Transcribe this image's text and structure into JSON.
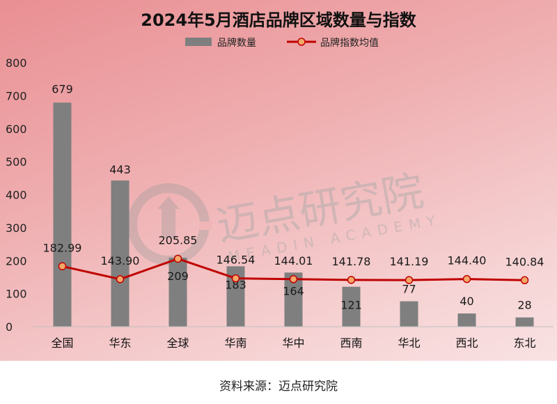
{
  "source_label": "资料来源：迈点研究院",
  "watermark": {
    "cn": "迈点研究院",
    "en": "MEADIN ACADEMY",
    "color": "#b0b0b0"
  },
  "colors": {
    "bar": "#7f7f7f",
    "line": "#c00000",
    "marker_fill": "#f4a86a"
  },
  "chart_data": {
    "type": "bar",
    "title": "2024年5月酒店品牌区域数量与指数",
    "categories": [
      "全国",
      "华东",
      "全球",
      "华南",
      "华中",
      "西南",
      "华北",
      "西北",
      "东北"
    ],
    "series": [
      {
        "name": "品牌数量",
        "type": "bar",
        "values": [
          679,
          443,
          209,
          183,
          164,
          121,
          77,
          40,
          28
        ]
      },
      {
        "name": "品牌指数均值",
        "type": "line",
        "values": [
          182.99,
          143.9,
          205.85,
          146.54,
          144.01,
          141.78,
          141.19,
          144.4,
          140.84
        ]
      }
    ],
    "ylim": [
      0,
      800
    ],
    "yticks": [
      0,
      100,
      200,
      300,
      400,
      500,
      600,
      700,
      800
    ],
    "legend_position": "top-center",
    "grid": false
  }
}
